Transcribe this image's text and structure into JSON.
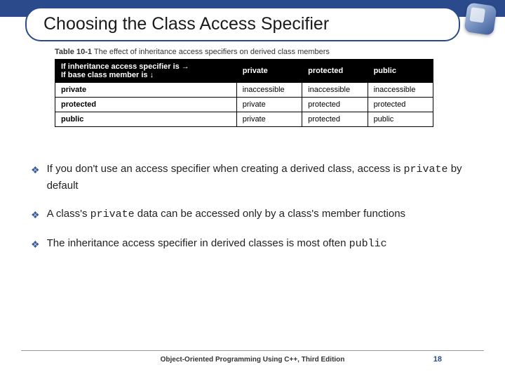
{
  "title": "Choosing the Class Access Specifier",
  "table": {
    "caption_label": "Table 10-1",
    "caption_text": "The effect of inheritance access specifiers on derived class members",
    "header_row_label1": "If inheritance access specifier is →",
    "header_row_label2": "If base class member is ↓",
    "columns": [
      "private",
      "protected",
      "public"
    ],
    "rows": [
      {
        "label": "private",
        "cells": [
          "inaccessible",
          "inaccessible",
          "inaccessible"
        ]
      },
      {
        "label": "protected",
        "cells": [
          "private",
          "protected",
          "protected"
        ]
      },
      {
        "label": "public",
        "cells": [
          "private",
          "protected",
          "public"
        ]
      }
    ]
  },
  "bullets": [
    {
      "pre": "If you don't use an access specifier when creating a derived class, access is ",
      "mono": "private",
      "post": " by default"
    },
    {
      "pre": "A class's ",
      "mono": "private",
      "post": " data can be accessed only by a class's member functions"
    },
    {
      "pre": "The inheritance access specifier in derived classes is most often ",
      "mono": "public",
      "post": ""
    }
  ],
  "footer": "Object-Oriented Programming Using C++, Third Edition",
  "page": "18",
  "colors": {
    "accent": "#2b4a8b"
  }
}
